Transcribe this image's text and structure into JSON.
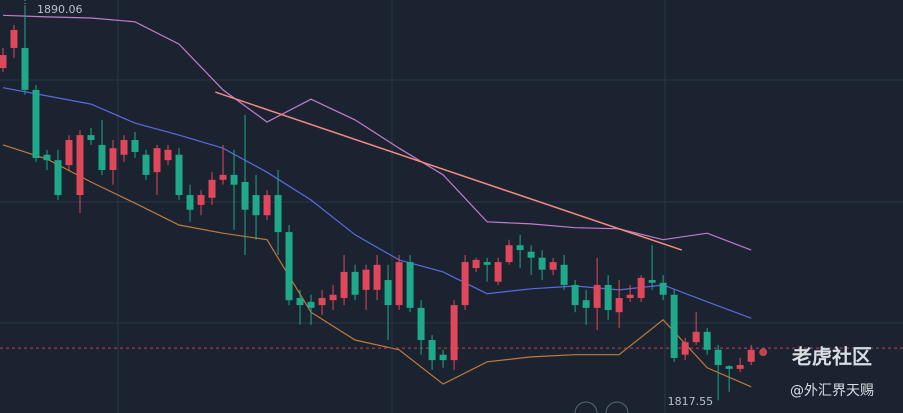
{
  "chart_data": {
    "type": "candlestick",
    "xlim": [
      -0.27,
      81.8
    ],
    "ylim": [
      1815.2,
      1891
    ],
    "up_color": "#e0475a",
    "down_color": "#1fa88a",
    "open": [
      1878.5,
      1882.2,
      1882.2,
      1874.5,
      1862.6,
      1861.6,
      1860.7,
      1855.2,
      1866.2,
      1864.4,
      1859.8,
      1862.6,
      1865.3,
      1862.6,
      1859.4,
      1861.6,
      1862.6,
      1855.2,
      1853.4,
      1854.7,
      1858.0,
      1858.9,
      1857.6,
      1855.2,
      1851.5,
      1855.2,
      1848.4,
      1836.3,
      1835.6,
      1835.0,
      1835.9,
      1836.3,
      1841.1,
      1837.8,
      1837.8,
      1839.6,
      1835.0,
      1842.9,
      1834.5,
      1828.6,
      1825.9,
      1824.9,
      1835.0,
      1841.8,
      1842.9,
      1839.3,
      1842.9,
      1846.0,
      1844.8,
      1843.7,
      1841.5,
      1842.4,
      1838.7,
      1835.9,
      1834.5,
      1838.7,
      1833.7,
      1836.3,
      1836.3,
      1839.6,
      1839.1,
      1836.9,
      1825.9,
      1828.2,
      1830.1,
      1826.8,
      1823.8,
      1823.3,
      1824.6
    ],
    "high": [
      1882.2,
      1886.4,
      1890.06,
      1875.4,
      1863.5,
      1863.5,
      1866.2,
      1867.1,
      1867.5,
      1869.0,
      1865.3,
      1866.2,
      1866.8,
      1863.5,
      1864.4,
      1864.4,
      1863.8,
      1857.1,
      1856.1,
      1859.4,
      1864.4,
      1863.5,
      1869.9,
      1858.9,
      1856.1,
      1859.8,
      1849.7,
      1837.8,
      1836.9,
      1837.8,
      1838.7,
      1844.2,
      1842.4,
      1842.4,
      1844.2,
      1842.4,
      1844.2,
      1844.2,
      1835.9,
      1829.5,
      1826.8,
      1835.9,
      1844.2,
      1843.7,
      1843.7,
      1843.7,
      1847.0,
      1847.9,
      1846.0,
      1845.1,
      1843.7,
      1844.2,
      1839.6,
      1837.8,
      1843.7,
      1840.5,
      1839.6,
      1838.7,
      1840.5,
      1846.0,
      1840.5,
      1837.8,
      1829.0,
      1833.7,
      1830.8,
      1827.7,
      1824.0,
      1825.3,
      1827.7
    ],
    "low": [
      1877.8,
      1880.4,
      1873.6,
      1861.3,
      1859.8,
      1854.3,
      1859.8,
      1851.9,
      1864.4,
      1858.9,
      1857.1,
      1861.3,
      1862.0,
      1858.0,
      1855.2,
      1860.7,
      1854.3,
      1850.3,
      1851.5,
      1853.4,
      1857.1,
      1848.8,
      1844.2,
      1847.0,
      1850.6,
      1844.2,
      1835.0,
      1831.4,
      1831.4,
      1833.2,
      1834.1,
      1835.0,
      1835.9,
      1834.1,
      1835.9,
      1828.6,
      1834.1,
      1833.7,
      1825.9,
      1823.1,
      1823.5,
      1823.1,
      1834.1,
      1841.1,
      1839.3,
      1838.7,
      1842.4,
      1841.8,
      1840.5,
      1839.6,
      1840.5,
      1837.8,
      1833.7,
      1831.4,
      1830.4,
      1832.3,
      1830.8,
      1835.6,
      1835.6,
      1837.8,
      1835.9,
      1824.6,
      1824.9,
      1827.7,
      1825.9,
      1817.55,
      1819.1,
      1822.7,
      1824.0
    ],
    "close": [
      1880.9,
      1885.5,
      1874.5,
      1862.0,
      1861.6,
      1855.2,
      1865.3,
      1866.2,
      1865.3,
      1859.8,
      1863.8,
      1865.3,
      1863.1,
      1858.9,
      1863.8,
      1863.5,
      1855.2,
      1852.5,
      1855.2,
      1858.0,
      1858.9,
      1857.1,
      1852.5,
      1851.5,
      1855.2,
      1848.4,
      1835.9,
      1835.0,
      1834.5,
      1836.3,
      1836.9,
      1841.1,
      1836.9,
      1841.5,
      1842.4,
      1835.0,
      1842.9,
      1834.5,
      1828.6,
      1824.9,
      1824.9,
      1835.0,
      1842.9,
      1843.3,
      1842.4,
      1842.9,
      1846.0,
      1845.1,
      1843.7,
      1841.5,
      1842.9,
      1838.7,
      1835.0,
      1834.5,
      1838.7,
      1834.1,
      1836.3,
      1836.9,
      1840.0,
      1839.1,
      1836.9,
      1825.3,
      1828.2,
      1830.1,
      1826.8,
      1824.0,
      1823.3,
      1824.0,
      1826.8
    ],
    "band_x": [
      0,
      4,
      8,
      12,
      16,
      20,
      24,
      28,
      32,
      36,
      40,
      44,
      48,
      52,
      56,
      60,
      64,
      68
    ],
    "bands": [
      {
        "color": "#c47ccc",
        "values": [
          1888.2,
          1887.9,
          1887.7,
          1887.0,
          1882.9,
          1874.5,
          1868.6,
          1872.8,
          1869.0,
          1863.8,
          1858.9,
          1850.3,
          1849.9,
          1849.2,
          1849.0,
          1847.0,
          1848.2,
          1845.1
        ]
      },
      {
        "color": "#5a6ae0",
        "values": [
          1874.9,
          1873.4,
          1871.9,
          1868.4,
          1866.2,
          1863.8,
          1859.4,
          1854.3,
          1847.9,
          1843.3,
          1841.1,
          1837.1,
          1838.0,
          1838.5,
          1837.8,
          1838.7,
          1835.6,
          1832.6
        ]
      },
      {
        "color": "#c07a3a",
        "values": [
          1864.4,
          1861.8,
          1857.6,
          1853.7,
          1849.7,
          1848.2,
          1847.0,
          1833.7,
          1828.6,
          1826.8,
          1820.5,
          1824.6,
          1825.5,
          1825.9,
          1825.9,
          1832.3,
          1823.5,
          1820.0
        ]
      }
    ],
    "trendline": {
      "color": "#f28a80",
      "x": [
        19.3,
        61.7
      ],
      "values": [
        1874.1,
        1845.1
      ]
    },
    "price_line": {
      "color": "#c0434f",
      "value": 1827.1
    },
    "watermark": {
      "title": "老虎社区",
      "handle": "@外汇界天赐"
    }
  }
}
